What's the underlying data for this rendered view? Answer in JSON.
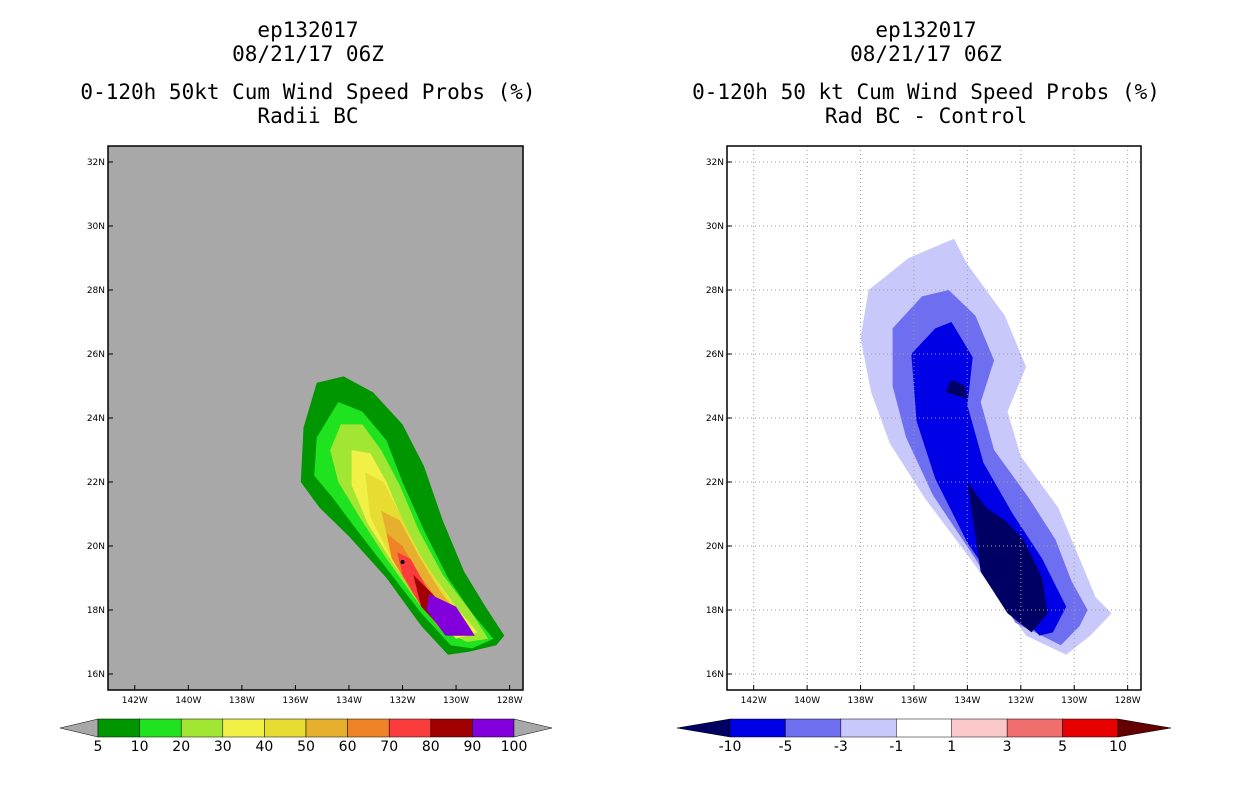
{
  "chart_data": [
    {
      "type": "filled-contour-map",
      "storm_id": "ep132017",
      "datetime": "08/21/17 06Z",
      "title": "0-120h 50kt Cum Wind Speed Probs (%)",
      "subtitle": "Radii BC",
      "background_color": "#a8a8a8",
      "xlim": [
        -143,
        -127.5
      ],
      "ylim": [
        15.5,
        32.5
      ],
      "x_ticks": [
        "142W",
        "140W",
        "138W",
        "136W",
        "134W",
        "132W",
        "130W",
        "128W"
      ],
      "x_tick_values": [
        -142,
        -140,
        -138,
        -136,
        -134,
        -132,
        -130,
        -128
      ],
      "y_ticks": [
        "16N",
        "18N",
        "20N",
        "22N",
        "24N",
        "26N",
        "28N",
        "30N",
        "32N"
      ],
      "y_tick_values": [
        16,
        18,
        20,
        22,
        24,
        26,
        28,
        30,
        32
      ],
      "grid": false,
      "colorbar": {
        "levels": [
          "5",
          "10",
          "20",
          "30",
          "40",
          "50",
          "60",
          "70",
          "80",
          "90",
          "100"
        ],
        "colors": [
          "#009600",
          "#1ee31e",
          "#a0e632",
          "#f0f046",
          "#e6dc32",
          "#e6af2d",
          "#f08228",
          "#fa3c3c",
          "#a00000",
          "#8200dc"
        ],
        "under_color": "#a8a8a8",
        "over_color": "#a8a8a8"
      },
      "contours": [
        {
          "level": 5,
          "points": [
            [
              -135.2,
              25.1
            ],
            [
              -134.2,
              25.3
            ],
            [
              -133.1,
              24.8
            ],
            [
              -132.0,
              23.8
            ],
            [
              -131.2,
              22.5
            ],
            [
              -130.5,
              20.8
            ],
            [
              -129.7,
              19.2
            ],
            [
              -128.9,
              18.1
            ],
            [
              -128.2,
              17.2
            ],
            [
              -128.5,
              16.9
            ],
            [
              -129.5,
              16.7
            ],
            [
              -130.3,
              16.6
            ],
            [
              -131.3,
              17.5
            ],
            [
              -132.6,
              19.0
            ],
            [
              -134.0,
              20.3
            ],
            [
              -135.1,
              21.2
            ],
            [
              -135.8,
              22.0
            ],
            [
              -135.7,
              23.7
            ]
          ]
        },
        {
          "level": 10,
          "points": [
            [
              -134.4,
              24.5
            ],
            [
              -133.5,
              24.2
            ],
            [
              -132.6,
              23.3
            ],
            [
              -132.0,
              22.0
            ],
            [
              -131.2,
              20.5
            ],
            [
              -130.3,
              19.0
            ],
            [
              -129.4,
              17.9
            ],
            [
              -128.6,
              17.1
            ],
            [
              -129.4,
              16.8
            ],
            [
              -130.2,
              16.9
            ],
            [
              -131.3,
              17.9
            ],
            [
              -132.6,
              19.3
            ],
            [
              -133.8,
              20.6
            ],
            [
              -134.6,
              21.5
            ],
            [
              -135.3,
              22.2
            ],
            [
              -135.2,
              23.4
            ]
          ]
        },
        {
          "level": 20,
          "points": [
            [
              -134.3,
              23.8
            ],
            [
              -133.5,
              23.8
            ],
            [
              -132.8,
              23.0
            ],
            [
              -132.1,
              21.9
            ],
            [
              -131.4,
              20.5
            ],
            [
              -130.5,
              19.1
            ],
            [
              -129.4,
              17.9
            ],
            [
              -128.8,
              17.1
            ],
            [
              -129.6,
              17.0
            ],
            [
              -130.3,
              17.3
            ],
            [
              -131.4,
              18.2
            ],
            [
              -132.6,
              19.6
            ],
            [
              -133.6,
              20.9
            ],
            [
              -134.4,
              22.0
            ],
            [
              -134.7,
              23.0
            ]
          ]
        },
        {
          "level": 30,
          "points": [
            [
              -133.9,
              23.0
            ],
            [
              -133.2,
              22.9
            ],
            [
              -132.6,
              22.0
            ],
            [
              -132.0,
              20.8
            ],
            [
              -131.2,
              19.5
            ],
            [
              -130.1,
              18.2
            ],
            [
              -129.2,
              17.3
            ],
            [
              -130.0,
              17.1
            ],
            [
              -131.2,
              18.1
            ],
            [
              -132.3,
              19.4
            ],
            [
              -133.3,
              20.7
            ],
            [
              -133.9,
              21.9
            ]
          ]
        },
        {
          "level": 40,
          "points": [
            [
              -133.4,
              22.3
            ],
            [
              -132.7,
              22.0
            ],
            [
              -132.1,
              21.0
            ],
            [
              -131.4,
              19.8
            ],
            [
              -130.4,
              18.5
            ],
            [
              -129.4,
              17.4
            ],
            [
              -130.2,
              17.2
            ],
            [
              -131.3,
              18.2
            ],
            [
              -132.4,
              19.6
            ],
            [
              -133.2,
              20.9
            ]
          ]
        },
        {
          "level": 50,
          "points": [
            [
              -132.8,
              21.1
            ],
            [
              -132.1,
              20.8
            ],
            [
              -131.4,
              19.7
            ],
            [
              -130.6,
              18.6
            ],
            [
              -129.6,
              17.5
            ],
            [
              -130.4,
              17.3
            ],
            [
              -131.5,
              18.4
            ],
            [
              -132.4,
              19.7
            ]
          ]
        },
        {
          "level": 60,
          "points": [
            [
              -132.6,
              20.4
            ],
            [
              -132.0,
              20.0
            ],
            [
              -131.3,
              19.0
            ],
            [
              -130.4,
              18.0
            ],
            [
              -129.8,
              17.4
            ],
            [
              -130.6,
              17.4
            ],
            [
              -131.6,
              18.5
            ],
            [
              -132.4,
              19.6
            ]
          ]
        },
        {
          "level": 70,
          "points": [
            [
              -132.2,
              19.8
            ],
            [
              -131.7,
              19.6
            ],
            [
              -131.1,
              18.7
            ],
            [
              -130.0,
              17.7
            ],
            [
              -129.4,
              17.2
            ],
            [
              -130.3,
              17.2
            ],
            [
              -131.3,
              18.1
            ],
            [
              -132.0,
              19.1
            ]
          ]
        },
        {
          "level": 80,
          "points": [
            [
              -131.6,
              19.1
            ],
            [
              -131.0,
              18.6
            ],
            [
              -130.0,
              17.7
            ],
            [
              -129.3,
              17.2
            ],
            [
              -130.3,
              17.2
            ],
            [
              -131.3,
              18.1
            ]
          ]
        },
        {
          "level": 90,
          "points": [
            [
              -131.0,
              18.5
            ],
            [
              -130.0,
              18.1
            ],
            [
              -129.3,
              17.2
            ],
            [
              -130.4,
              17.2
            ],
            [
              -131.1,
              18.0
            ]
          ]
        }
      ],
      "max_point": {
        "lon": -132.0,
        "lat": 19.5
      }
    },
    {
      "type": "filled-contour-map",
      "storm_id": "ep132017",
      "datetime": "08/21/17 06Z",
      "title": "0-120h 50 kt Cum Wind Speed Probs (%)",
      "subtitle": "Rad BC - Control",
      "background_color": "#ffffff",
      "xlim": [
        -143,
        -127.5
      ],
      "ylim": [
        15.5,
        32.5
      ],
      "x_ticks": [
        "142W",
        "140W",
        "138W",
        "136W",
        "134W",
        "132W",
        "130W",
        "128W"
      ],
      "x_tick_values": [
        -142,
        -140,
        -138,
        -136,
        -134,
        -132,
        -130,
        -128
      ],
      "y_ticks": [
        "16N",
        "18N",
        "20N",
        "22N",
        "24N",
        "26N",
        "28N",
        "30N",
        "32N"
      ],
      "y_tick_values": [
        16,
        18,
        20,
        22,
        24,
        26,
        28,
        30,
        32
      ],
      "grid": true,
      "colorbar": {
        "levels": [
          "-10",
          "-5",
          "-3",
          "-1",
          "1",
          "3",
          "5",
          "10"
        ],
        "colors": [
          "#0000e6",
          "#6e6ef0",
          "#c8c8fa",
          "#ffffff",
          "#fac8c8",
          "#f06e6e",
          "#e60000"
        ],
        "under_color": "#000064",
        "over_color": "#640000"
      },
      "contours": [
        {
          "level": -1,
          "points": [
            [
              -137.7,
              28.0
            ],
            [
              -136.2,
              29.0
            ],
            [
              -134.5,
              29.6
            ],
            [
              -134.0,
              28.8
            ],
            [
              -132.6,
              27.2
            ],
            [
              -131.8,
              25.6
            ],
            [
              -132.5,
              24.2
            ],
            [
              -132.0,
              22.8
            ],
            [
              -130.6,
              21.2
            ],
            [
              -129.8,
              19.6
            ],
            [
              -129.2,
              18.4
            ],
            [
              -128.6,
              17.9
            ],
            [
              -129.4,
              17.2
            ],
            [
              -130.3,
              16.6
            ],
            [
              -131.8,
              17.2
            ],
            [
              -133.8,
              19.5
            ],
            [
              -135.6,
              21.5
            ],
            [
              -136.9,
              23.2
            ],
            [
              -137.6,
              24.8
            ],
            [
              -138.0,
              26.5
            ]
          ]
        },
        {
          "level": -3,
          "points": [
            [
              -136.8,
              26.8
            ],
            [
              -135.7,
              27.8
            ],
            [
              -134.7,
              28.0
            ],
            [
              -133.7,
              27.2
            ],
            [
              -133.0,
              25.8
            ],
            [
              -133.5,
              24.5
            ],
            [
              -133.0,
              23.0
            ],
            [
              -131.7,
              21.5
            ],
            [
              -130.7,
              20.2
            ],
            [
              -130.1,
              18.9
            ],
            [
              -129.5,
              18.0
            ],
            [
              -129.8,
              17.5
            ],
            [
              -130.5,
              16.9
            ],
            [
              -132.2,
              17.6
            ],
            [
              -133.7,
              19.6
            ],
            [
              -135.3,
              21.6
            ],
            [
              -136.3,
              23.4
            ],
            [
              -136.8,
              25.0
            ]
          ]
        },
        {
          "level": -5,
          "points": [
            [
              -136.1,
              26.0
            ],
            [
              -135.2,
              26.8
            ],
            [
              -134.6,
              27.0
            ],
            [
              -133.8,
              25.9
            ],
            [
              -134.0,
              24.4
            ],
            [
              -133.4,
              22.6
            ],
            [
              -132.3,
              21.0
            ],
            [
              -131.2,
              19.6
            ],
            [
              -130.3,
              18.1
            ],
            [
              -130.8,
              17.3
            ],
            [
              -131.3,
              17.2
            ],
            [
              -132.6,
              18.4
            ],
            [
              -134.0,
              20.1
            ],
            [
              -135.2,
              22.1
            ],
            [
              -135.9,
              23.9
            ]
          ]
        },
        {
          "level": -10,
          "points": [
            [
              -134.0,
              22.0
            ],
            [
              -133.3,
              21.2
            ],
            [
              -132.6,
              20.8
            ],
            [
              -131.9,
              20.2
            ],
            [
              -131.2,
              19.0
            ],
            [
              -131.0,
              17.9
            ],
            [
              -131.6,
              17.3
            ],
            [
              -132.5,
              17.9
            ],
            [
              -133.5,
              19.2
            ]
          ]
        },
        {
          "level": -10,
          "points": [
            [
              -134.6,
              25.2
            ],
            [
              -134.1,
              25.0
            ],
            [
              -134.0,
              24.6
            ],
            [
              -134.8,
              24.8
            ]
          ]
        }
      ]
    }
  ]
}
